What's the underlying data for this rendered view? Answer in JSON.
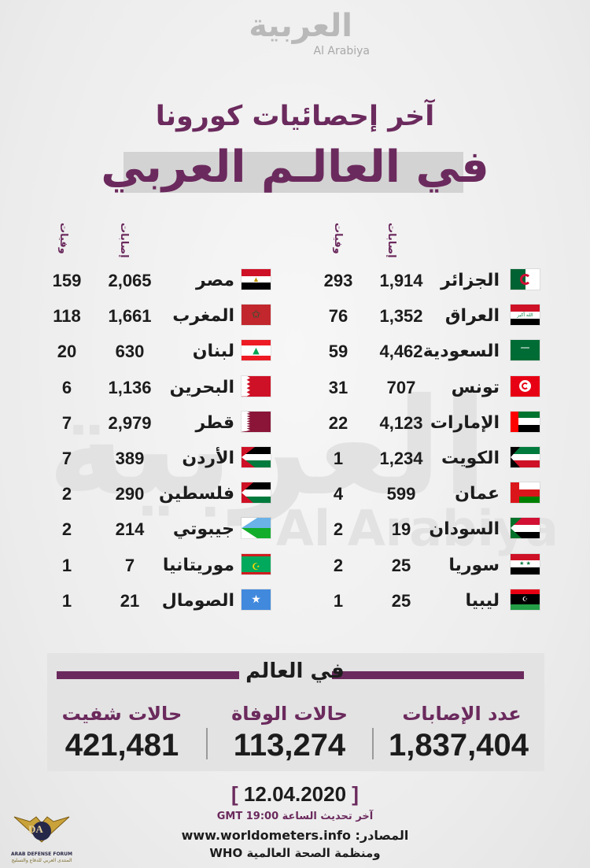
{
  "logo": {
    "arabic": "العربية",
    "english": "Al Arabiya"
  },
  "watermark": {
    "arabic": "العربية",
    "english": "Al Arabiya"
  },
  "title": {
    "line1": "آخر إحصائيات كورونا",
    "line2": "في العالـم العربي"
  },
  "column_headers": {
    "cases": "إصابات",
    "deaths": "وفيات"
  },
  "right_column": [
    {
      "country": "الجزائر",
      "cases": "1,914",
      "deaths": "293",
      "flag": "algeria-flag"
    },
    {
      "country": "العراق",
      "cases": "1,352",
      "deaths": "76",
      "flag": "iraq-flag"
    },
    {
      "country": "السعودية",
      "cases": "4,462",
      "deaths": "59",
      "flag": "saudi-flag"
    },
    {
      "country": "تونس",
      "cases": "707",
      "deaths": "31",
      "flag": "tunisia-flag"
    },
    {
      "country": "الإمارات",
      "cases": "4,123",
      "deaths": "22",
      "flag": "uae-flag"
    },
    {
      "country": "الكويت",
      "cases": "1,234",
      "deaths": "1",
      "flag": "kuwait-flag"
    },
    {
      "country": "عمان",
      "cases": "599",
      "deaths": "4",
      "flag": "oman-flag"
    },
    {
      "country": "السودان",
      "cases": "19",
      "deaths": "2",
      "flag": "sudan-flag"
    },
    {
      "country": "سوريا",
      "cases": "25",
      "deaths": "2",
      "flag": "syria-flag"
    },
    {
      "country": "ليبيا",
      "cases": "25",
      "deaths": "1",
      "flag": "libya-flag"
    }
  ],
  "left_column": [
    {
      "country": "مصر",
      "cases": "2,065",
      "deaths": "159",
      "flag": "egypt-flag"
    },
    {
      "country": "المغرب",
      "cases": "1,661",
      "deaths": "118",
      "flag": "morocco-flag"
    },
    {
      "country": "لبنان",
      "cases": "630",
      "deaths": "20",
      "flag": "lebanon-flag"
    },
    {
      "country": "البحرين",
      "cases": "1,136",
      "deaths": "6",
      "flag": "bahrain-flag"
    },
    {
      "country": "قطر",
      "cases": "2,979",
      "deaths": "7",
      "flag": "qatar-flag"
    },
    {
      "country": "الأردن",
      "cases": "389",
      "deaths": "7",
      "flag": "jordan-flag"
    },
    {
      "country": "فلسطين",
      "cases": "290",
      "deaths": "2",
      "flag": "palestine-flag"
    },
    {
      "country": "جيبوتي",
      "cases": "214",
      "deaths": "2",
      "flag": "djibouti-flag"
    },
    {
      "country": "موريتانيا",
      "cases": "7",
      "deaths": "1",
      "flag": "mauritania-flag"
    },
    {
      "country": "الصومال",
      "cases": "21",
      "deaths": "1",
      "flag": "somalia-flag"
    }
  ],
  "world": {
    "title": "في العالم",
    "cases_label": "عدد الإصابات",
    "cases_value": "1,837,404",
    "deaths_label": "حالات الوفاة",
    "deaths_value": "113,274",
    "recovered_label": "حالات شفيت",
    "recovered_value": "421,481"
  },
  "footer": {
    "date": "12.04.2020",
    "bracket_open": "[",
    "bracket_close": "]",
    "update_text": "آخر تحديث الساعة 19:00 GMT",
    "source_label": "المصادر:",
    "source_url": "www.worldometers.info",
    "source_who": "ومنظمة الصحة العالمية WHO"
  },
  "badge": {
    "initials": "DA",
    "name": "ARAB DEFENSE FORUM",
    "name_ar": "المنتدى العربي للدفاع والتسليح"
  },
  "colors": {
    "accent": "#6b2a5d",
    "text": "#1c1c1c",
    "background": "#f1f1f1"
  }
}
